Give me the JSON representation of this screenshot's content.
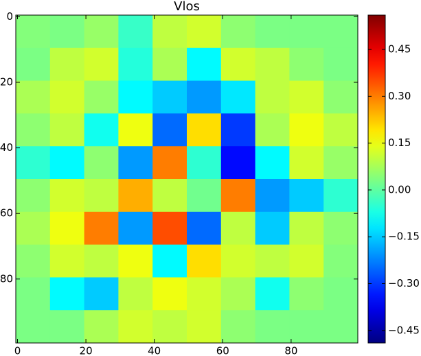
{
  "chart_data": {
    "type": "heatmap",
    "title": "Vlos",
    "colormap": "jet",
    "xlim": [
      -0.5,
      99.5
    ],
    "ylim": [
      99.5,
      -0.5
    ],
    "xticks": [
      0,
      20,
      40,
      60,
      80
    ],
    "yticks": [
      0,
      20,
      40,
      60,
      80
    ],
    "clim": [
      -0.49,
      0.56
    ],
    "cticks": [
      {
        "value": -0.45,
        "label": "−0.45"
      },
      {
        "value": -0.3,
        "label": "−0.30"
      },
      {
        "value": -0.15,
        "label": "−0.15"
      },
      {
        "value": 0,
        "label": "0.00"
      },
      0.15,
      {
        "value": 0.3,
        "label": "0.30"
      },
      0.45
    ],
    "z": [
      [
        0.04,
        0.03,
        0.06,
        -0.04,
        0.1,
        0.12,
        0.05,
        0.03,
        0.03,
        0.03
      ],
      [
        0.03,
        0.1,
        0.12,
        -0.06,
        0.08,
        -0.1,
        0.12,
        0.1,
        0.05,
        0.03
      ],
      [
        0.08,
        0.12,
        0.06,
        -0.1,
        -0.15,
        -0.2,
        -0.12,
        0.1,
        0.12,
        0.05
      ],
      [
        0.05,
        0.1,
        -0.08,
        0.15,
        -0.25,
        0.2,
        -0.3,
        0.08,
        0.15,
        0.1
      ],
      [
        -0.05,
        -0.1,
        0.05,
        -0.2,
        0.3,
        -0.05,
        -0.35,
        -0.1,
        0.12,
        0.06
      ],
      [
        0.05,
        0.12,
        0.1,
        0.25,
        0.1,
        0.02,
        0.3,
        -0.2,
        -0.15,
        -0.05
      ],
      [
        0.08,
        0.15,
        0.3,
        -0.2,
        0.35,
        -0.25,
        0.1,
        -0.15,
        0.1,
        0.05
      ],
      [
        0.05,
        0.12,
        0.1,
        0.15,
        -0.1,
        0.2,
        0.12,
        0.1,
        0.12,
        0.04
      ],
      [
        0.03,
        -0.1,
        -0.15,
        0.1,
        0.15,
        0.12,
        0.08,
        -0.08,
        0.05,
        0.03
      ],
      [
        0.03,
        0.03,
        0.08,
        0.12,
        0.1,
        0.12,
        0.05,
        0.03,
        0.03,
        0.03
      ]
    ]
  }
}
